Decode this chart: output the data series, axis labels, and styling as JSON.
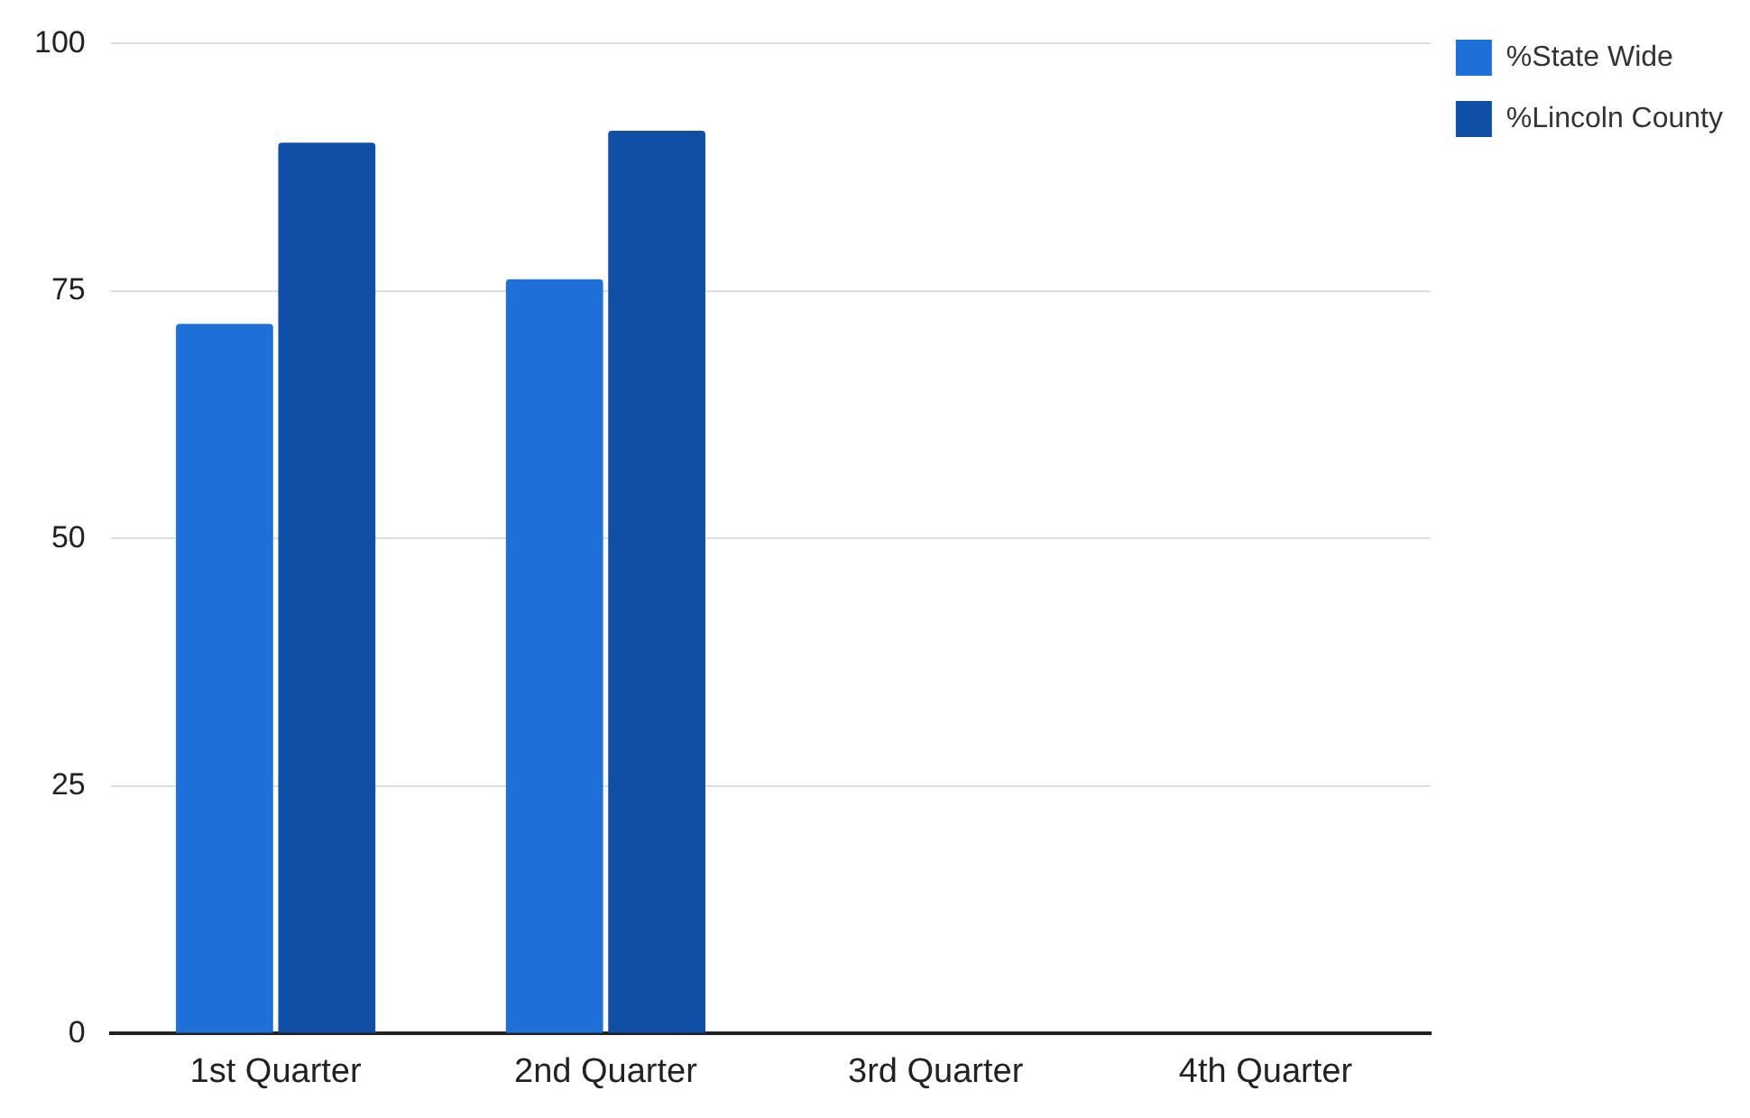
{
  "chart_data": {
    "type": "bar",
    "categories": [
      "1st Quarter",
      "2nd Quarter",
      "3rd Quarter",
      "4th Quarter"
    ],
    "series": [
      {
        "name": "%State Wide",
        "color": "#1f6fd8",
        "values": [
          71.7,
          76.2,
          null,
          null
        ]
      },
      {
        "name": "%Lincoln County",
        "color": "#0f4fa6",
        "values": [
          90,
          91.2,
          null,
          null
        ]
      }
    ],
    "ylim": [
      0,
      100
    ],
    "yticks": [
      0,
      25,
      50,
      75,
      100
    ],
    "grid": "y",
    "legend": "top right"
  }
}
